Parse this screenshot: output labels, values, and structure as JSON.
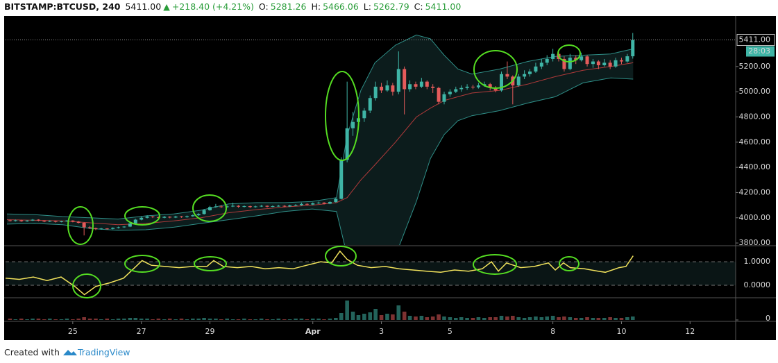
{
  "header": {
    "symbol": "BITSTAMP:BTCUSD, 240",
    "last": "5411.00",
    "arrow": "▲",
    "change": "+218.40 (+4.21%)",
    "o_label": "O:",
    "o": "5281.26",
    "h_label": "H:",
    "h": "5466.06",
    "l_label": "L:",
    "l": "5262.79",
    "c_label": "C:",
    "c": "5411.00"
  },
  "footer": {
    "created": "Created with",
    "brand": "TradingView"
  },
  "chart_data": {
    "type": "candlestick",
    "xlim": [
      23.04,
      44.33
    ],
    "xticks": [
      25,
      27,
      29,
      {
        "value": 32,
        "label": "Apr"
      },
      {
        "value": 34,
        "label": "3"
      },
      {
        "value": 36,
        "label": "5"
      },
      {
        "value": 39,
        "label": "8"
      },
      {
        "value": 41,
        "label": "10"
      },
      {
        "value": 43,
        "label": "12"
      }
    ],
    "ylim": [
      3784,
      5590
    ],
    "yticks": [
      {
        "value": 3800,
        "label": "3800.00"
      },
      {
        "value": 4000,
        "label": "4000.00"
      },
      {
        "value": 4200,
        "label": "4200.00"
      },
      {
        "value": 4400,
        "label": "4400.00"
      },
      {
        "value": 4600,
        "label": "4600.00"
      },
      {
        "value": 4800,
        "label": "4800.00"
      },
      {
        "value": 5000,
        "label": "5000.00"
      },
      {
        "value": 5200,
        "label": "5200.00"
      }
    ],
    "colors": {
      "up": "#3fb5a6",
      "down": "#e45b5b"
    },
    "last_price_label": "5411.00",
    "countdown": "28:03",
    "x": [
      23.17,
      23.33,
      23.5,
      23.67,
      23.83,
      24,
      24.17,
      24.33,
      24.5,
      24.67,
      24.83,
      25,
      25.17,
      25.33,
      25.5,
      25.67,
      25.83,
      26,
      26.17,
      26.33,
      26.5,
      26.67,
      26.83,
      27,
      27.17,
      27.33,
      27.5,
      27.67,
      27.83,
      28,
      28.17,
      28.33,
      28.5,
      28.67,
      28.83,
      29,
      29.17,
      29.33,
      29.5,
      29.67,
      29.83,
      30,
      30.17,
      30.33,
      30.5,
      30.67,
      30.83,
      31,
      31.17,
      31.33,
      31.5,
      31.67,
      31.83,
      32,
      32.17,
      32.33,
      32.5,
      32.67,
      32.83,
      33,
      33.17,
      33.33,
      33.5,
      33.67,
      33.83,
      34,
      34.17,
      34.33,
      34.5,
      34.67,
      34.83,
      35,
      35.17,
      35.33,
      35.5,
      35.67,
      35.83,
      36,
      36.17,
      36.33,
      36.5,
      36.67,
      36.83,
      37,
      37.17,
      37.33,
      37.5,
      37.67,
      37.83,
      38,
      38.17,
      38.33,
      38.5,
      38.67,
      38.83,
      39,
      39.17,
      39.33,
      39.5,
      39.67,
      39.83,
      40,
      40.17,
      40.33,
      40.5,
      40.67,
      40.83,
      41,
      41.17,
      41.33
    ],
    "ohlc": [
      [
        3980,
        3985,
        3970,
        3975
      ],
      [
        3975,
        3986,
        3970,
        3980
      ],
      [
        3980,
        3984,
        3968,
        3972
      ],
      [
        3972,
        3982,
        3968,
        3978
      ],
      [
        3978,
        3990,
        3975,
        3985
      ],
      [
        3985,
        3988,
        3972,
        3978
      ],
      [
        3978,
        3980,
        3965,
        3970
      ],
      [
        3970,
        3980,
        3966,
        3975
      ],
      [
        3975,
        3978,
        3962,
        3968
      ],
      [
        3968,
        3976,
        3964,
        3972
      ],
      [
        3972,
        3982,
        3968,
        3978
      ],
      [
        3978,
        3980,
        3964,
        3970
      ],
      [
        3970,
        3974,
        3955,
        3960
      ],
      [
        3960,
        3965,
        3860,
        3925
      ],
      [
        3925,
        3935,
        3912,
        3918
      ],
      [
        3918,
        3922,
        3902,
        3910
      ],
      [
        3910,
        3920,
        3905,
        3915
      ],
      [
        3915,
        3918,
        3906,
        3912
      ],
      [
        3912,
        3924,
        3908,
        3920
      ],
      [
        3920,
        3930,
        3915,
        3925
      ],
      [
        3925,
        3934,
        3920,
        3930
      ],
      [
        3930,
        3960,
        3926,
        3955
      ],
      [
        3955,
        3992,
        3950,
        3985
      ],
      [
        3985,
        4010,
        3980,
        4000
      ],
      [
        4000,
        4020,
        3995,
        4010
      ],
      [
        4010,
        4015,
        3998,
        4005
      ],
      [
        4005,
        4010,
        3994,
        4000
      ],
      [
        4000,
        4014,
        3996,
        4008
      ],
      [
        4008,
        4012,
        3996,
        4002
      ],
      [
        4002,
        4016,
        3998,
        4010
      ],
      [
        4010,
        4014,
        4000,
        4005
      ],
      [
        4005,
        4018,
        4000,
        4012
      ],
      [
        4012,
        4026,
        4008,
        4020
      ],
      [
        4020,
        4036,
        4015,
        4030
      ],
      [
        4030,
        4070,
        4025,
        4060
      ],
      [
        4060,
        4095,
        4055,
        4085
      ],
      [
        4085,
        4110,
        4080,
        4090
      ],
      [
        4090,
        4100,
        4078,
        4085
      ],
      [
        4085,
        4098,
        4080,
        4090
      ],
      [
        4090,
        4120,
        4085,
        4095
      ],
      [
        4095,
        4100,
        4080,
        4088
      ],
      [
        4088,
        4098,
        4082,
        4092
      ],
      [
        4092,
        4096,
        4078,
        4085
      ],
      [
        4085,
        4096,
        4080,
        4090
      ],
      [
        4090,
        4102,
        4086,
        4095
      ],
      [
        4095,
        4098,
        4082,
        4088
      ],
      [
        4088,
        4098,
        4084,
        4092
      ],
      [
        4092,
        4102,
        4088,
        4095
      ],
      [
        4095,
        4100,
        4084,
        4090
      ],
      [
        4090,
        4104,
        4086,
        4098
      ],
      [
        4098,
        4108,
        4092,
        4100
      ],
      [
        4100,
        4120,
        4096,
        4110
      ],
      [
        4110,
        4116,
        4098,
        4105
      ],
      [
        4105,
        4122,
        4100,
        4115
      ],
      [
        4115,
        4128,
        4110,
        4120
      ],
      [
        4120,
        4124,
        4106,
        4112
      ],
      [
        4112,
        4132,
        4108,
        4125
      ],
      [
        4125,
        4160,
        4120,
        4150
      ],
      [
        4150,
        4480,
        4145,
        4460
      ],
      [
        4460,
        5080,
        4440,
        4710
      ],
      [
        4710,
        4840,
        4650,
        4760
      ],
      [
        4760,
        4820,
        4700,
        4790
      ],
      [
        4790,
        4870,
        4760,
        4850
      ],
      [
        4850,
        4970,
        4830,
        4950
      ],
      [
        4950,
        5080,
        4930,
        5040
      ],
      [
        5040,
        5070,
        4990,
        5010
      ],
      [
        5010,
        5090,
        5000,
        5050
      ],
      [
        5050,
        5070,
        4970,
        5000
      ],
      [
        5000,
        5320,
        4980,
        5180
      ],
      [
        5180,
        5200,
        4820,
        5020
      ],
      [
        5020,
        5090,
        5000,
        5060
      ],
      [
        5060,
        5080,
        5020,
        5040
      ],
      [
        5040,
        5110,
        5030,
        5080
      ],
      [
        5080,
        5090,
        5020,
        5040
      ],
      [
        5040,
        5060,
        4990,
        5030
      ],
      [
        5030,
        5040,
        4900,
        4920
      ],
      [
        4920,
        5000,
        4900,
        4980
      ],
      [
        4980,
        5020,
        4960,
        5000
      ],
      [
        5000,
        5040,
        4990,
        5020
      ],
      [
        5020,
        5050,
        5000,
        5030
      ],
      [
        5030,
        5060,
        5015,
        5040
      ],
      [
        5040,
        5055,
        5020,
        5035
      ],
      [
        5035,
        5070,
        5025,
        5050
      ],
      [
        5050,
        5080,
        5040,
        5060
      ],
      [
        5060,
        5070,
        5010,
        5030
      ],
      [
        5030,
        5045,
        4995,
        5010
      ],
      [
        5010,
        5160,
        5000,
        5140
      ],
      [
        5140,
        5240,
        5100,
        5120
      ],
      [
        5120,
        5130,
        4900,
        5050
      ],
      [
        5050,
        5140,
        5040,
        5120
      ],
      [
        5120,
        5170,
        5100,
        5140
      ],
      [
        5140,
        5180,
        5120,
        5160
      ],
      [
        5160,
        5230,
        5150,
        5200
      ],
      [
        5200,
        5260,
        5180,
        5230
      ],
      [
        5230,
        5290,
        5210,
        5260
      ],
      [
        5260,
        5340,
        5240,
        5300
      ],
      [
        5300,
        5320,
        5240,
        5260
      ],
      [
        5260,
        5280,
        5160,
        5180
      ],
      [
        5180,
        5300,
        5170,
        5270
      ],
      [
        5270,
        5290,
        5220,
        5250
      ],
      [
        5250,
        5310,
        5240,
        5280
      ],
      [
        5280,
        5290,
        5200,
        5220
      ],
      [
        5220,
        5260,
        5190,
        5240
      ],
      [
        5240,
        5250,
        5180,
        5210
      ],
      [
        5210,
        5260,
        5200,
        5230
      ],
      [
        5230,
        5250,
        5180,
        5200
      ],
      [
        5200,
        5270,
        5190,
        5250
      ],
      [
        5250,
        5270,
        5220,
        5240
      ],
      [
        5240,
        5300,
        5230,
        5281.26
      ],
      [
        5281.26,
        5466.06,
        5262.79,
        5411
      ]
    ],
    "bands": {
      "color": "#2f8f88",
      "mid_color": "#b03a3a",
      "fill": "#0c1c1c",
      "x": [
        23.08,
        23.89,
        24.7,
        25.51,
        26.32,
        27.13,
        27.94,
        28.74,
        29.55,
        30.36,
        31.17,
        31.98,
        32.69,
        33,
        33.4,
        33.81,
        34.41,
        35.02,
        35.43,
        35.83,
        36.23,
        36.64,
        37.45,
        38.26,
        39.07,
        39.88,
        40.69,
        41.34
      ],
      "upper": [
        4030,
        4025,
        4010,
        4000,
        3990,
        4015,
        4030,
        4060,
        4110,
        4120,
        4120,
        4130,
        4160,
        4650,
        5010,
        5230,
        5370,
        5450,
        5420,
        5290,
        5180,
        5140,
        5180,
        5240,
        5280,
        5290,
        5300,
        5340
      ],
      "mid": [
        3985,
        3980,
        3975,
        3960,
        3945,
        3955,
        3975,
        4000,
        4040,
        4065,
        4085,
        4100,
        4120,
        4160,
        4300,
        4420,
        4600,
        4800,
        4870,
        4930,
        4960,
        4990,
        5010,
        5060,
        5120,
        5170,
        5200,
        5230
      ],
      "lower": [
        3950,
        3955,
        3945,
        3915,
        3900,
        3905,
        3925,
        3955,
        3985,
        4015,
        4050,
        4070,
        4050,
        3700,
        3500,
        3400,
        3700,
        4130,
        4470,
        4660,
        4770,
        4810,
        4850,
        4910,
        4960,
        5070,
        5110,
        5100
      ]
    },
    "oscillator": {
      "color": "#f2e35c",
      "ylim": [
        -0.5,
        1.65
      ],
      "yticks": [
        {
          "value": 1,
          "label": "1.0000"
        },
        {
          "value": 0,
          "label": "0.0000"
        }
      ],
      "x": [
        23.04,
        23.44,
        23.85,
        24.25,
        24.66,
        25.06,
        25.34,
        25.67,
        26.07,
        26.48,
        26.88,
        27.02,
        27.29,
        27.69,
        28.1,
        28.5,
        28.91,
        29.11,
        29.39,
        29.8,
        30.2,
        30.61,
        31.01,
        31.42,
        31.82,
        32.23,
        32.55,
        32.79,
        33,
        33.3,
        33.7,
        34.11,
        34.51,
        34.92,
        35.32,
        35.73,
        36.13,
        36.54,
        36.94,
        37.21,
        37.41,
        37.65,
        38.06,
        38.46,
        38.87,
        39.07,
        39.31,
        39.51,
        39.92,
        40.32,
        40.53,
        40.93,
        41.13,
        41.34
      ],
      "values": [
        0.3,
        0.25,
        0.35,
        0.2,
        0.35,
        -0.05,
        -0.4,
        -0.05,
        0.1,
        0.3,
        0.85,
        1.05,
        0.85,
        0.8,
        0.75,
        0.8,
        0.8,
        1.05,
        0.8,
        0.75,
        0.8,
        0.7,
        0.75,
        0.7,
        0.85,
        1.0,
        0.95,
        1.45,
        1.1,
        0.85,
        0.75,
        0.8,
        0.7,
        0.65,
        0.6,
        0.55,
        0.65,
        0.6,
        0.7,
        1.0,
        0.6,
        0.95,
        0.75,
        0.8,
        0.95,
        0.65,
        0.95,
        0.75,
        0.7,
        0.6,
        0.55,
        0.75,
        0.8,
        1.25
      ]
    },
    "volume": {
      "ylim": [
        -2,
        31
      ],
      "yticks": [
        0
      ],
      "values": [
        2,
        1,
        2,
        1,
        2,
        2,
        1,
        2,
        1,
        1,
        2,
        1,
        2,
        4,
        2,
        2,
        1,
        2,
        1,
        2,
        2,
        3,
        3,
        2,
        2,
        1,
        2,
        1,
        2,
        1,
        2,
        1,
        2,
        2,
        3,
        2,
        2,
        1,
        2,
        1,
        1,
        2,
        1,
        1,
        2,
        1,
        1,
        2,
        1,
        1,
        2,
        2,
        1,
        2,
        2,
        1,
        2,
        3,
        10,
        28,
        12,
        7,
        9,
        11,
        16,
        7,
        9,
        8,
        21,
        12,
        6,
        5,
        6,
        4,
        5,
        8,
        5,
        4,
        3,
        4,
        3,
        3,
        4,
        3,
        4,
        4,
        6,
        5,
        6,
        4,
        3,
        4,
        5,
        4,
        5,
        6,
        4,
        5,
        4,
        3,
        3,
        4,
        3,
        3,
        3,
        4,
        3,
        3,
        4,
        5
      ]
    }
  }
}
